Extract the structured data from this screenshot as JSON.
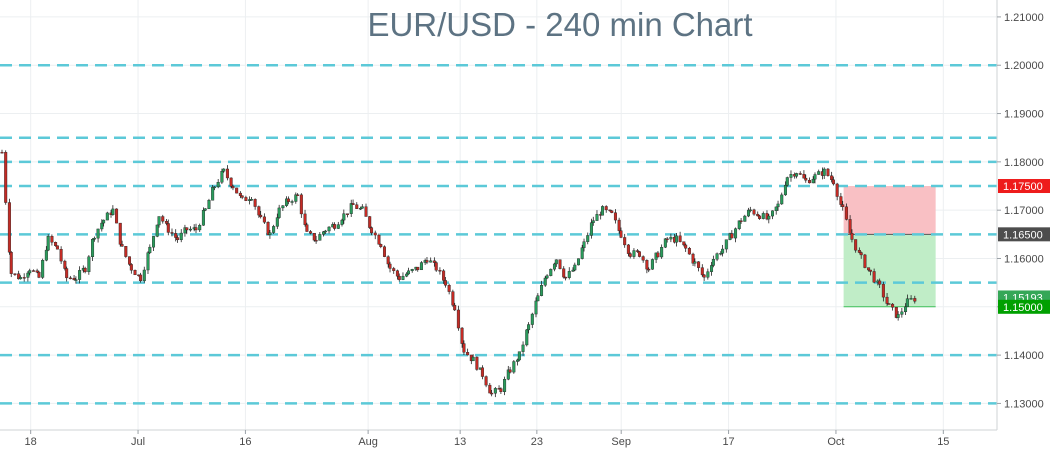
{
  "chart_data": {
    "type": "candlestick",
    "title": "EUR/USD - 240 min Chart",
    "xlabel": "",
    "ylabel": "",
    "ylim": [
      1.1245,
      1.2135
    ],
    "y_ticks": [
      1.13,
      1.14,
      1.15,
      1.16,
      1.17,
      1.18,
      1.19,
      1.2,
      1.21
    ],
    "y_tick_labels": [
      "1.13000",
      "1.14000",
      "1.15000",
      "1.16000",
      "1.17000",
      "1.18000",
      "1.19000",
      "1.20000",
      "1.21000"
    ],
    "x_ticks": [
      {
        "label": "18",
        "date": "2018-06-18"
      },
      {
        "label": "Jul",
        "date": "2018-07-02"
      },
      {
        "label": "16",
        "date": "2018-07-16"
      },
      {
        "label": "Aug",
        "date": "2018-08-01"
      },
      {
        "label": "13",
        "date": "2018-08-13"
      },
      {
        "label": "23",
        "date": "2018-08-23"
      },
      {
        "label": "Sep",
        "date": "2018-09-03"
      },
      {
        "label": "17",
        "date": "2018-09-17"
      },
      {
        "label": "Oct",
        "date": "2018-10-01"
      },
      {
        "label": "15",
        "date": "2018-10-15"
      }
    ],
    "horizontal_levels": [
      1.13,
      1.14,
      1.155,
      1.165,
      1.175,
      1.18,
      1.185,
      1.2
    ],
    "price_series": [
      [
        "2018-06-17",
        1.182
      ],
      [
        "2018-06-18",
        1.157
      ],
      [
        "2018-06-19",
        1.156
      ],
      [
        "2018-06-20",
        1.158
      ],
      [
        "2018-06-21",
        1.156
      ],
      [
        "2018-06-22",
        1.164
      ],
      [
        "2018-06-25",
        1.162
      ],
      [
        "2018-06-26",
        1.156
      ],
      [
        "2018-06-27",
        1.156
      ],
      [
        "2018-06-28",
        1.158
      ],
      [
        "2018-06-29",
        1.165
      ],
      [
        "2018-07-02",
        1.168
      ],
      [
        "2018-07-03",
        1.17
      ],
      [
        "2018-07-05",
        1.162
      ],
      [
        "2018-07-06",
        1.158
      ],
      [
        "2018-07-09",
        1.156
      ],
      [
        "2018-07-10",
        1.162
      ],
      [
        "2018-07-11",
        1.169
      ],
      [
        "2018-07-12",
        1.166
      ],
      [
        "2018-07-13",
        1.164
      ],
      [
        "2018-07-16",
        1.166
      ],
      [
        "2018-07-17",
        1.166
      ],
      [
        "2018-07-18",
        1.17
      ],
      [
        "2018-07-19",
        1.175
      ],
      [
        "2018-07-20",
        1.178
      ],
      [
        "2018-07-23",
        1.175
      ],
      [
        "2018-07-24",
        1.172
      ],
      [
        "2018-07-25",
        1.173
      ],
      [
        "2018-07-26",
        1.168
      ],
      [
        "2018-07-27",
        1.165
      ],
      [
        "2018-07-30",
        1.17
      ],
      [
        "2018-07-31",
        1.172
      ],
      [
        "2018-08-01",
        1.173
      ],
      [
        "2018-08-02",
        1.165
      ],
      [
        "2018-08-03",
        1.164
      ],
      [
        "2018-08-06",
        1.166
      ],
      [
        "2018-08-07",
        1.167
      ],
      [
        "2018-08-08",
        1.169
      ],
      [
        "2018-08-09",
        1.171
      ],
      [
        "2018-08-10",
        1.17
      ],
      [
        "2018-08-13",
        1.166
      ],
      [
        "2018-08-14",
        1.163
      ],
      [
        "2018-08-15",
        1.158
      ],
      [
        "2018-08-16",
        1.156
      ],
      [
        "2018-08-17",
        1.157
      ],
      [
        "2018-08-20",
        1.158
      ],
      [
        "2018-08-21",
        1.16
      ],
      [
        "2018-08-22",
        1.158
      ],
      [
        "2018-08-23",
        1.155
      ],
      [
        "2018-08-24",
        1.15
      ],
      [
        "2018-08-27",
        1.141
      ],
      [
        "2018-08-28",
        1.139
      ],
      [
        "2018-08-29",
        1.136
      ],
      [
        "2018-08-30",
        1.132
      ],
      [
        "2018-08-31",
        1.133
      ],
      [
        "2018-09-03",
        1.137
      ],
      [
        "2018-09-04",
        1.14
      ],
      [
        "2018-09-05",
        1.146
      ],
      [
        "2018-09-06",
        1.152
      ],
      [
        "2018-09-07",
        1.157
      ],
      [
        "2018-09-10",
        1.16
      ],
      [
        "2018-09-11",
        1.156
      ],
      [
        "2018-09-12",
        1.158
      ],
      [
        "2018-09-13",
        1.163
      ],
      [
        "2018-09-14",
        1.168
      ],
      [
        "2018-09-17",
        1.17
      ],
      [
        "2018-09-18",
        1.169
      ],
      [
        "2018-09-19",
        1.165
      ],
      [
        "2018-09-20",
        1.161
      ],
      [
        "2018-09-21",
        1.161
      ],
      [
        "2018-09-24",
        1.158
      ],
      [
        "2018-09-25",
        1.161
      ],
      [
        "2018-09-26",
        1.164
      ],
      [
        "2018-09-27",
        1.164
      ],
      [
        "2018-09-28",
        1.162
      ],
      [
        "2018-10-01",
        1.159
      ],
      [
        "2018-10-02",
        1.156
      ],
      [
        "2018-10-03",
        1.16
      ],
      [
        "2018-10-04",
        1.162
      ],
      [
        "2018-10-05",
        1.165
      ],
      [
        "2018-10-08",
        1.168
      ],
      [
        "2018-10-09",
        1.17
      ],
      [
        "2018-10-10",
        1.169
      ],
      [
        "2018-10-11",
        1.168
      ],
      [
        "2018-10-12",
        1.171
      ],
      [
        "2018-10-15",
        1.177
      ],
      [
        "2018-10-16",
        1.178
      ],
      [
        "2018-10-17",
        1.176
      ],
      [
        "2018-10-18",
        1.177
      ],
      [
        "2018-10-19",
        1.178
      ],
      [
        "2018-10-22",
        1.176
      ],
      [
        "2018-10-23",
        1.17
      ],
      [
        "2018-10-24",
        1.164
      ],
      [
        "2018-10-25",
        1.16
      ],
      [
        "2018-10-26",
        1.157
      ],
      [
        "2018-10-29",
        1.154
      ],
      [
        "2018-10-30",
        1.15
      ],
      [
        "2018-10-31",
        1.148
      ],
      [
        "2018-11-01",
        1.151
      ],
      [
        "2018-11-02",
        1.1519
      ]
    ],
    "trade_zones": [
      {
        "from": 1.165,
        "to": 1.175,
        "color": "#f9c0c4",
        "kind": "risk"
      },
      {
        "from": 1.15,
        "to": 1.165,
        "color": "#c0edc7",
        "kind": "reward"
      }
    ],
    "price_labels": [
      {
        "value": 1.175,
        "text": "1.17500",
        "color": "#ee1c1c"
      },
      {
        "value": 1.165,
        "text": "1.16500",
        "color": "#4d4d4d"
      },
      {
        "value": 1.15193,
        "text": "1.15193",
        "color": "#35a757"
      },
      {
        "value": 1.15,
        "text": "1.15000",
        "color": "#00a000"
      }
    ],
    "colors": {
      "level_line": "#5cc9d8",
      "up_candle": "#2a9c5c",
      "down_candle": "#c42b25",
      "axis_text": "#4a4a4a",
      "title": "#5d7383"
    }
  }
}
